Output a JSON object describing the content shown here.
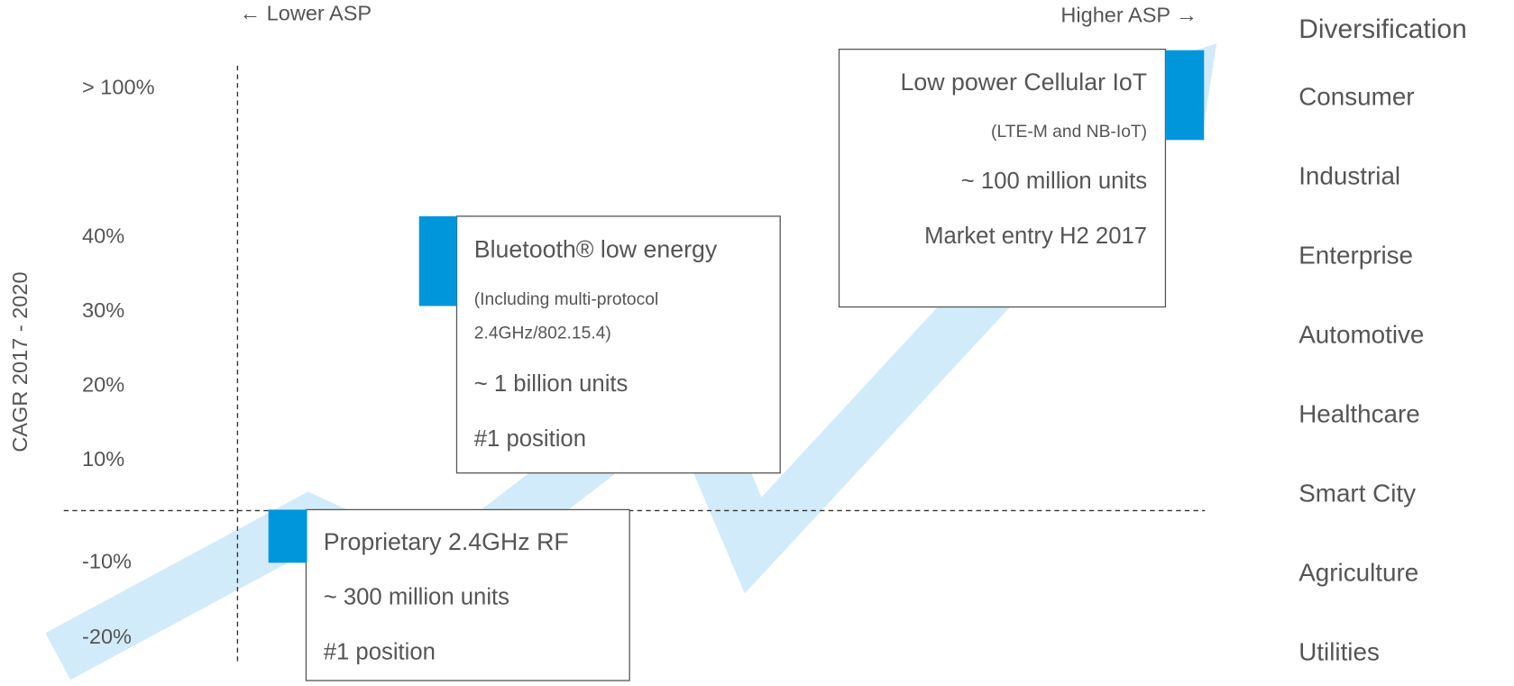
{
  "axis": {
    "left_label": "← Lower ASP",
    "right_label": "Higher ASP →",
    "y_title": "CAGR  2017 - 2020",
    "y_labels": [
      "> 100%",
      "40%",
      "30%",
      "20%",
      "10%",
      "-10%",
      "-20%"
    ]
  },
  "boxes": [
    {
      "title": "Bluetooth® low energy",
      "lines": [
        "(Including multi-protocol",
        "2.4GHz/802.15.4)",
        "~ 1 billion units",
        "#1 position"
      ]
    },
    {
      "title": "Proprietary 2.4GHz RF",
      "lines": [
        "~ 300 million units",
        "#1 position"
      ]
    },
    {
      "title": "Low power Cellular IoT",
      "lines": [
        "(LTE-M and NB-IoT)",
        "~ 100 million units",
        "Market entry H2 2017"
      ]
    }
  ],
  "diversification": {
    "title": "Diversification",
    "items": [
      "Consumer",
      "Industrial",
      "Enterprise",
      "Automotive",
      "Healthcare",
      "Smart City",
      "Agriculture",
      "Utilities"
    ]
  }
}
